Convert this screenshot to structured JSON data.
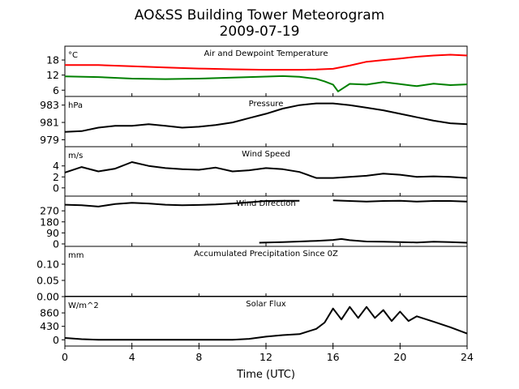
{
  "chart_data": {
    "type": "line",
    "title": "AO&SS Building Tower Meteorogram",
    "subtitle": "2009-07-19",
    "xlabel": "Time (UTC)",
    "xlim": [
      0,
      24
    ],
    "xticks": [
      0,
      4,
      8,
      12,
      16,
      20,
      24
    ],
    "panels": [
      {
        "id": "temp",
        "title": "Air and Dewpoint Temperature",
        "unit": "°C",
        "ylim": [
          3.5,
          23.5
        ],
        "yticks": [
          6,
          12,
          18
        ],
        "series": [
          {
            "color": "#ff0000",
            "x": [
              0,
              2,
              4,
              6,
              8,
              10,
              12,
              14,
              15,
              16,
              17,
              18,
              19,
              20,
              21,
              22,
              23,
              24
            ],
            "y": [
              16,
              16,
              15.5,
              15,
              14.6,
              14.3,
              14.1,
              14.1,
              14.2,
              14.5,
              15.8,
              17.3,
              18,
              18.6,
              19.3,
              19.8,
              20.1,
              19.8
            ]
          },
          {
            "color": "#008000",
            "x": [
              0,
              2,
              4,
              6,
              8,
              10,
              12,
              13,
              14,
              15,
              15.5,
              16,
              16.3,
              17,
              18,
              19,
              20,
              21,
              22,
              23,
              24
            ],
            "y": [
              11.5,
              11.2,
              10.6,
              10.4,
              10.6,
              11,
              11.4,
              11.6,
              11.3,
              10.5,
              9.5,
              8.2,
              5.5,
              8.5,
              8.2,
              9.2,
              8.4,
              7.6,
              8.6,
              8,
              8.3
            ]
          }
        ]
      },
      {
        "id": "pressure",
        "title": "Pressure",
        "unit": "hPa",
        "ylim": [
          978.2,
          984.0
        ],
        "yticks": [
          979,
          981,
          983
        ],
        "series": [
          {
            "color": "#000000",
            "x": [
              0,
              1,
              2,
              3,
              4,
              5,
              6,
              7,
              8,
              9,
              10,
              11,
              12,
              13,
              14,
              15,
              16,
              17,
              18,
              19,
              20,
              21,
              22,
              23,
              24
            ],
            "y": [
              979.9,
              980.0,
              980.4,
              980.6,
              980.6,
              980.8,
              980.6,
              980.4,
              980.5,
              980.7,
              981.0,
              981.5,
              982.0,
              982.6,
              983.0,
              983.2,
              983.2,
              983.0,
              982.7,
              982.4,
              982.0,
              981.6,
              981.2,
              980.9,
              980.8
            ]
          }
        ]
      },
      {
        "id": "wind_speed",
        "title": "Wind Speed",
        "unit": "m/s",
        "ylim": [
          -1.5,
          7.5
        ],
        "yticks": [
          0,
          2,
          4
        ],
        "series": [
          {
            "color": "#000000",
            "x": [
              0,
              1,
              2,
              3,
              4,
              5,
              6,
              7,
              8,
              9,
              10,
              11,
              12,
              13,
              14,
              15,
              16,
              17,
              18,
              19,
              20,
              21,
              22,
              23,
              24
            ],
            "y": [
              2.8,
              3.8,
              3.0,
              3.5,
              4.7,
              4.0,
              3.6,
              3.4,
              3.3,
              3.7,
              3.0,
              3.2,
              3.6,
              3.4,
              2.9,
              1.8,
              1.8,
              2.0,
              2.2,
              2.6,
              2.4,
              2.0,
              2.1,
              2.0,
              1.8
            ]
          }
        ]
      },
      {
        "id": "wind_dir",
        "title": "Wind Direction",
        "unit": "",
        "ylim": [
          -20,
          390
        ],
        "yticks": [
          0,
          90,
          180,
          270
        ],
        "series": [
          {
            "color": "#000000",
            "x": [
              0,
              1,
              2,
              3,
              4,
              5,
              6,
              7,
              8,
              9,
              10,
              11,
              12,
              13,
              14,
              15,
              16,
              17,
              18,
              19,
              20,
              21,
              22,
              23,
              24
            ],
            "y": [
              320,
              315,
              305,
              325,
              335,
              330,
              320,
              315,
              318,
              322,
              330,
              340,
              350,
              352,
              352,
              null,
              355,
              350,
              345,
              350,
              352,
              345,
              350,
              350,
              345
            ]
          },
          {
            "color": "#000000",
            "x": [
              11.6,
              12,
              13,
              14,
              15,
              16,
              16.5,
              17,
              18,
              19,
              20,
              21,
              22,
              23,
              24
            ],
            "y": [
              10,
              12,
              15,
              20,
              25,
              32,
              40,
              30,
              20,
              18,
              15,
              12,
              18,
              15,
              10
            ]
          }
        ]
      },
      {
        "id": "precip",
        "title": "Accumulated Precipitation Since 0Z",
        "unit": "mm",
        "ylim": [
          0,
          0.155
        ],
        "yticks": [
          0.0,
          0.05,
          0.1
        ],
        "yticklabels": [
          "0.00",
          "0.05",
          "0.10"
        ],
        "series": [
          {
            "color": "#000000",
            "x": [
              0,
              24
            ],
            "y": [
              0,
              0
            ]
          }
        ]
      },
      {
        "id": "solar",
        "title": "Solar Flux",
        "unit": "W/m^2",
        "ylim": [
          -200,
          1380
        ],
        "yticks": [
          0,
          430,
          860
        ],
        "series": [
          {
            "color": "#000000",
            "x": [
              0,
              1,
              2,
              3,
              4,
              5,
              6,
              7,
              8,
              9,
              10,
              11,
              12,
              13,
              14,
              15,
              15.5,
              16,
              16.5,
              17,
              17.5,
              18,
              18.5,
              19,
              19.5,
              20,
              20.5,
              21,
              22,
              23,
              24
            ],
            "y": [
              60,
              20,
              0,
              0,
              0,
              0,
              0,
              0,
              0,
              0,
              0,
              30,
              100,
              150,
              180,
              350,
              550,
              1000,
              650,
              1050,
              700,
              1050,
              700,
              950,
              600,
              900,
              600,
              750,
              580,
              400,
              200
            ]
          }
        ]
      }
    ]
  }
}
